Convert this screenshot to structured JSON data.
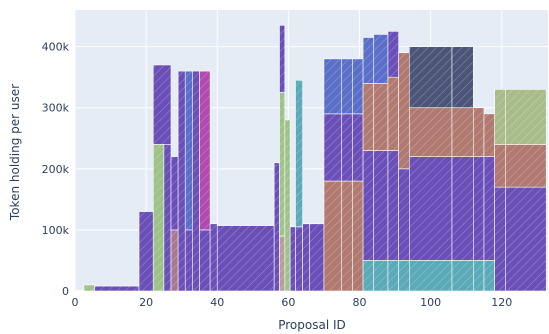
{
  "chart_data": {
    "type": "bar",
    "barmode": "stack",
    "xlabel": "Proposal ID",
    "ylabel": "Token holding per user",
    "xlim": [
      0,
      133
    ],
    "ylim": [
      0,
      460000
    ],
    "x_ticks": [
      0,
      20,
      40,
      60,
      80,
      100,
      120
    ],
    "y_ticks": [
      0,
      100000,
      200000,
      300000,
      400000
    ],
    "y_tick_labels": [
      "0",
      "100k",
      "200k",
      "300k",
      "400k"
    ],
    "grid": true,
    "legend": "none",
    "colors": {
      "purple": "#6a4fb8",
      "green": "#9ec28a",
      "blue": "#5a6fc8",
      "magenta": "#b04ab0",
      "teal": "#5aaab8",
      "mauve": "#a87890",
      "brown": "#b07a70",
      "olive": "#a8bc8a",
      "navy": "#4a5578",
      "tan": "#b89c98",
      "gray": "#a0a0a0",
      "plot_bg": "#e5ecf6",
      "paper_bg": "#ffffff",
      "axis_text": "#2a3f5f"
    },
    "bars": [
      {
        "x0": 2.5,
        "x1": 5.5,
        "segments": [
          [
            "green",
            10000
          ]
        ]
      },
      {
        "x0": 5.5,
        "x1": 18,
        "segments": [
          [
            "purple",
            8000
          ]
        ]
      },
      {
        "x0": 18,
        "x1": 22,
        "segments": [
          [
            "purple",
            130000
          ]
        ]
      },
      {
        "x0": 22,
        "x1": 25,
        "segments": [
          [
            "green",
            240000
          ]
        ]
      },
      {
        "x0": 22,
        "x1": 27,
        "base": 240000,
        "segments": [
          [
            "purple",
            130000
          ]
        ]
      },
      {
        "x0": 25,
        "x1": 27,
        "segments": [
          [
            "purple",
            240000
          ]
        ]
      },
      {
        "x0": 27,
        "x1": 29,
        "segments": [
          [
            "mauve",
            100000
          ],
          [
            "purple",
            120000
          ]
        ]
      },
      {
        "x0": 29,
        "x1": 31,
        "segments": [
          [
            "purple",
            360000
          ]
        ]
      },
      {
        "x0": 31,
        "x1": 33,
        "segments": [
          [
            "purple",
            100000
          ],
          [
            "blue",
            260000
          ]
        ]
      },
      {
        "x0": 33,
        "x1": 35,
        "segments": [
          [
            "purple",
            360000
          ]
        ]
      },
      {
        "x0": 35,
        "x1": 38,
        "segments": [
          [
            "purple",
            100000
          ],
          [
            "magenta",
            260000
          ]
        ]
      },
      {
        "x0": 38,
        "x1": 40,
        "segments": [
          [
            "purple",
            110000
          ]
        ]
      },
      {
        "x0": 40,
        "x1": 56,
        "segments": [
          [
            "purple",
            107000
          ]
        ]
      },
      {
        "x0": 56,
        "x1": 57.5,
        "segments": [
          [
            "purple",
            210000
          ]
        ]
      },
      {
        "x0": 57.5,
        "x1": 59,
        "segments": [
          [
            "tan",
            90000
          ],
          [
            "green",
            235000
          ],
          [
            "purple",
            110000
          ]
        ]
      },
      {
        "x0": 59,
        "x1": 60.5,
        "segments": [
          [
            "green",
            280000
          ]
        ]
      },
      {
        "x0": 60.5,
        "x1": 62,
        "segments": [
          [
            "purple",
            105000
          ]
        ]
      },
      {
        "x0": 62,
        "x1": 64,
        "segments": [
          [
            "purple",
            105000
          ],
          [
            "teal",
            240000
          ]
        ]
      },
      {
        "x0": 64,
        "x1": 66,
        "segments": [
          [
            "purple",
            110000
          ]
        ]
      },
      {
        "x0": 66,
        "x1": 70,
        "segments": [
          [
            "purple",
            110000
          ]
        ]
      },
      {
        "x0": 70,
        "x1": 75,
        "segments": [
          [
            "brown",
            180000
          ],
          [
            "purple",
            110000
          ],
          [
            "blue",
            90000
          ]
        ]
      },
      {
        "x0": 75,
        "x1": 78,
        "segments": [
          [
            "brown",
            180000
          ],
          [
            "purple",
            110000
          ],
          [
            "blue",
            90000
          ]
        ]
      },
      {
        "x0": 78,
        "x1": 81,
        "segments": [
          [
            "brown",
            180000
          ],
          [
            "purple",
            110000
          ],
          [
            "blue",
            90000
          ]
        ]
      },
      {
        "x0": 81,
        "x1": 84,
        "segments": [
          [
            "teal",
            50000
          ],
          [
            "purple",
            180000
          ],
          [
            "brown",
            110000
          ],
          [
            "blue",
            75000
          ]
        ]
      },
      {
        "x0": 84,
        "x1": 88,
        "segments": [
          [
            "teal",
            50000
          ],
          [
            "purple",
            180000
          ],
          [
            "brown",
            110000
          ],
          [
            "blue",
            80000
          ]
        ]
      },
      {
        "x0": 88,
        "x1": 91,
        "segments": [
          [
            "teal",
            50000
          ],
          [
            "purple",
            180000
          ],
          [
            "brown",
            120000
          ],
          [
            "purple",
            75000
          ]
        ]
      },
      {
        "x0": 91,
        "x1": 94,
        "segments": [
          [
            "teal",
            50000
          ],
          [
            "purple",
            150000
          ],
          [
            "brown",
            190000
          ]
        ]
      },
      {
        "x0": 94,
        "x1": 106,
        "segments": [
          [
            "teal",
            50000
          ],
          [
            "purple",
            170000
          ],
          [
            "brown",
            80000
          ],
          [
            "navy",
            100000
          ]
        ]
      },
      {
        "x0": 106,
        "x1": 112,
        "segments": [
          [
            "teal",
            50000
          ],
          [
            "purple",
            170000
          ],
          [
            "brown",
            80000
          ],
          [
            "navy",
            100000
          ]
        ]
      },
      {
        "x0": 112,
        "x1": 115,
        "segments": [
          [
            "teal",
            50000
          ],
          [
            "purple",
            170000
          ],
          [
            "brown",
            80000
          ]
        ]
      },
      {
        "x0": 115,
        "x1": 118,
        "segments": [
          [
            "teal",
            50000
          ],
          [
            "purple",
            170000
          ],
          [
            "brown",
            70000
          ]
        ]
      },
      {
        "x0": 118,
        "x1": 121,
        "segments": [
          [
            "purple",
            170000
          ],
          [
            "brown",
            70000
          ],
          [
            "olive",
            90000
          ]
        ]
      },
      {
        "x0": 121,
        "x1": 132.5,
        "segments": [
          [
            "purple",
            170000
          ],
          [
            "brown",
            70000
          ],
          [
            "olive",
            90000
          ]
        ]
      }
    ]
  }
}
